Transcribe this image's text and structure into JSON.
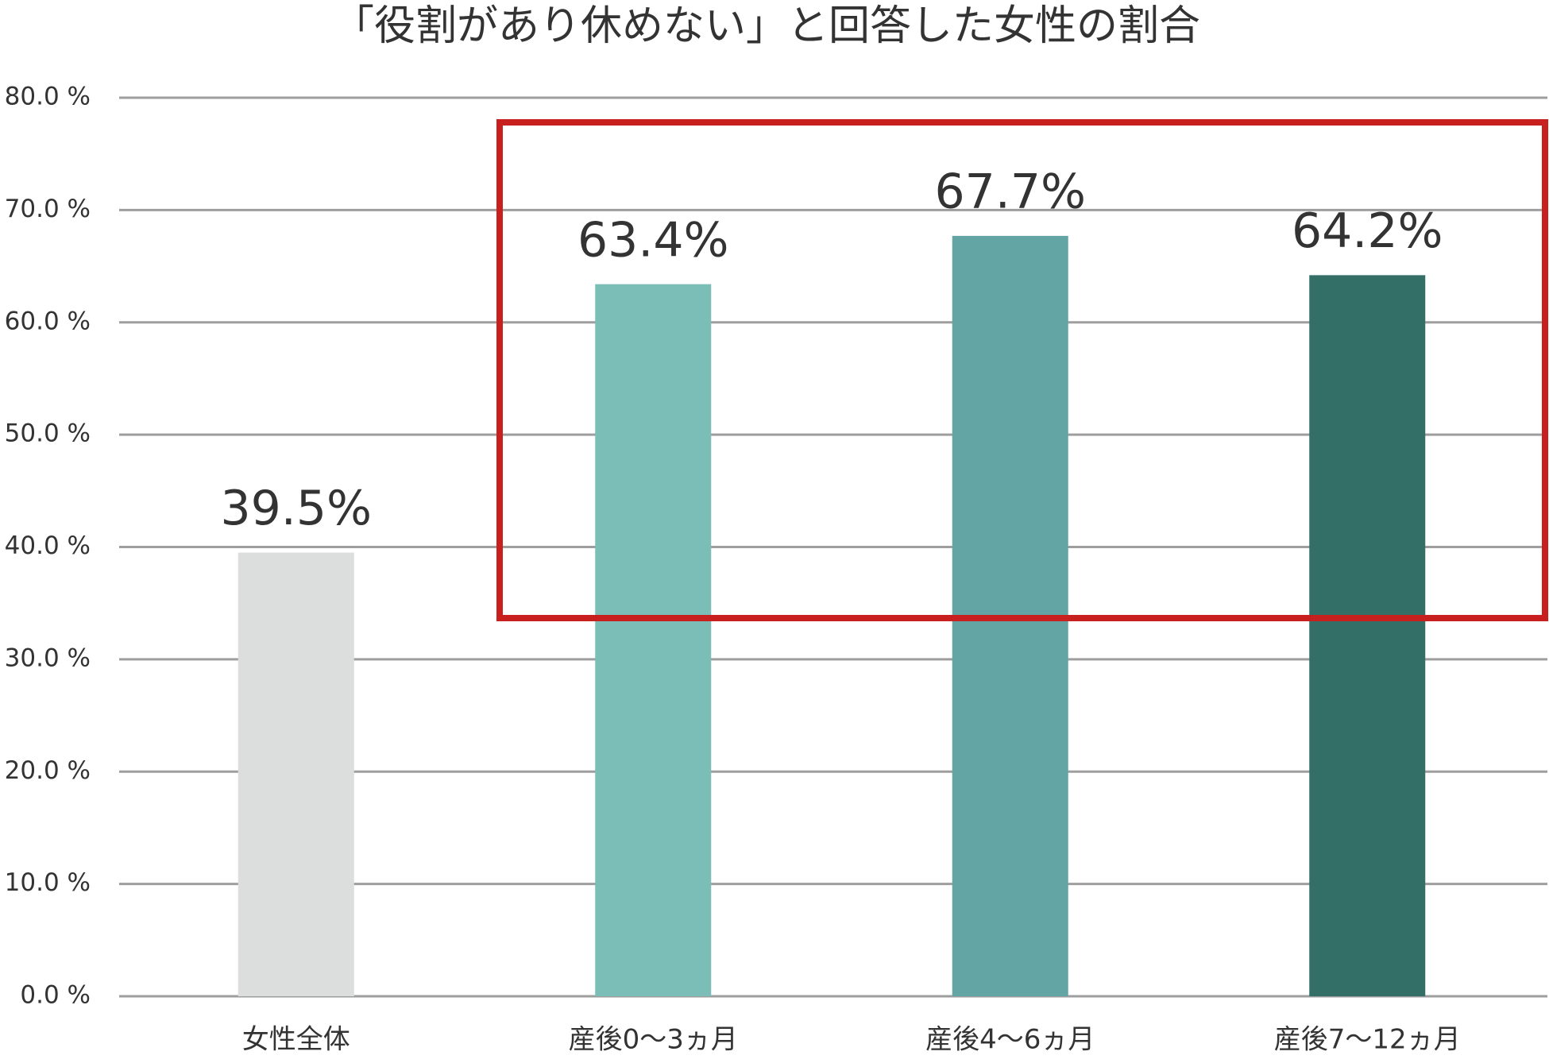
{
  "chart_data": {
    "type": "bar",
    "title": "「役割があり休めない」と回答した女性の割合",
    "categories": [
      "女性全体",
      "産後0〜3ヵ月",
      "産後4〜6ヵ月",
      "産後7〜12ヵ月"
    ],
    "values": [
      39.5,
      63.4,
      67.7,
      64.2
    ],
    "value_labels": [
      "39.5%",
      "63.4%",
      "67.7%",
      "64.2%"
    ],
    "colors": [
      "#dcdddd",
      "#7bbdb7",
      "#63a5a5",
      "#336e67"
    ],
    "ylim": [
      0,
      80
    ],
    "yticks": [
      {
        "value": 0,
        "label": "0.0 %"
      },
      {
        "value": 10,
        "label": "10.0 %"
      },
      {
        "value": 20,
        "label": "20.0 %"
      },
      {
        "value": 30,
        "label": "30.0 %"
      },
      {
        "value": 40,
        "label": "40.0 %"
      },
      {
        "value": 50,
        "label": "50.0 %"
      },
      {
        "value": 60,
        "label": "60.0 %"
      },
      {
        "value": 70,
        "label": "70.0 %"
      },
      {
        "value": 80,
        "label": "80.0 %"
      }
    ],
    "grid": true
  }
}
